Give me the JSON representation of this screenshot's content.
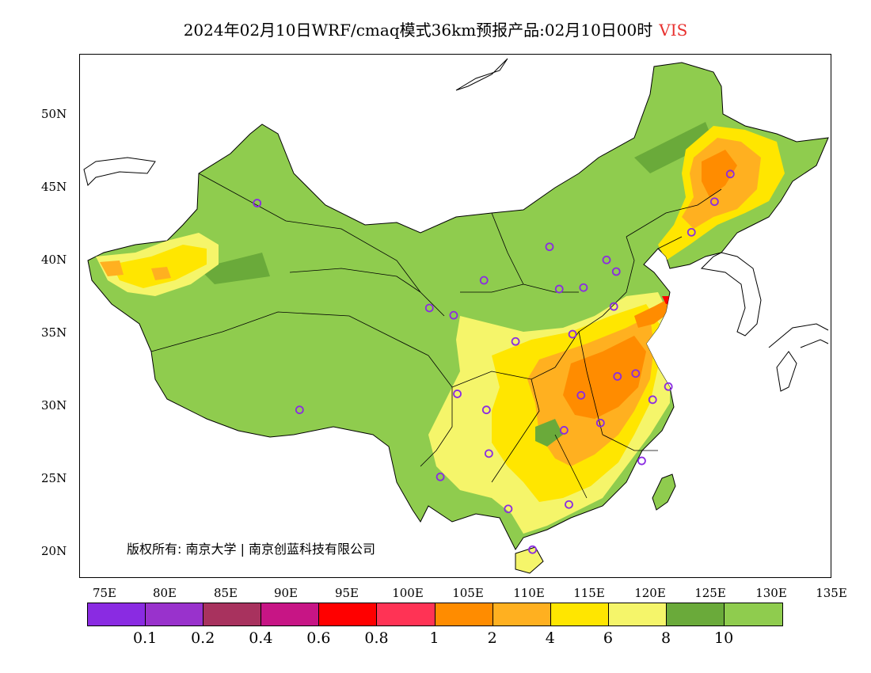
{
  "title": {
    "main": "2024年02月10日WRF/cmaq模式36km预报产品:02月10日00时",
    "variable": "VIS",
    "variable_color": "#e8312f"
  },
  "axes": {
    "lat_labels": [
      "50N",
      "45N",
      "40N",
      "35N",
      "30N",
      "25N",
      "20N"
    ],
    "lon_labels": [
      "75E",
      "80E",
      "85E",
      "90E",
      "95E",
      "100E",
      "105E",
      "110E",
      "115E",
      "120E",
      "125E",
      "130E",
      "135E"
    ]
  },
  "copyright": "版权所有: 南京大学 | 南京创蓝科技有限公司",
  "colorbar": {
    "colors": [
      "#8a2be2",
      "#9932cc",
      "#a8325e",
      "#c71585",
      "#ff0000",
      "#ff3355",
      "#ff8c00",
      "#ffb020",
      "#ffe600",
      "#f5f56a",
      "#6aaa3a",
      "#8fcc4e"
    ],
    "ticks": [
      "0.1",
      "0.2",
      "0.4",
      "0.6",
      "0.8",
      "1",
      "2",
      "4",
      "6",
      "8",
      "10"
    ]
  },
  "chart_data": {
    "type": "heatmap",
    "title": "2024年02月10日WRF/cmaq模式36km预报产品:02月10日00时 VIS",
    "lat_range": [
      18,
      54
    ],
    "lon_range": [
      73,
      135
    ],
    "levels": [
      0.1,
      0.2,
      0.4,
      0.6,
      0.8,
      1,
      2,
      4,
      6,
      8,
      10
    ],
    "stations": [
      {
        "lon": 87.6,
        "lat": 43.8
      },
      {
        "lon": 91.1,
        "lat": 29.6
      },
      {
        "lon": 101.8,
        "lat": 36.6
      },
      {
        "lon": 103.8,
        "lat": 36.1
      },
      {
        "lon": 106.3,
        "lat": 38.5
      },
      {
        "lon": 111.7,
        "lat": 40.8
      },
      {
        "lon": 116.4,
        "lat": 39.9
      },
      {
        "lon": 117.2,
        "lat": 39.1
      },
      {
        "lon": 114.5,
        "lat": 38.0
      },
      {
        "lon": 112.5,
        "lat": 37.9
      },
      {
        "lon": 108.9,
        "lat": 34.3
      },
      {
        "lon": 113.6,
        "lat": 34.8
      },
      {
        "lon": 117.0,
        "lat": 36.7
      },
      {
        "lon": 104.1,
        "lat": 30.7
      },
      {
        "lon": 106.5,
        "lat": 29.6
      },
      {
        "lon": 106.7,
        "lat": 26.6
      },
      {
        "lon": 102.7,
        "lat": 25.0
      },
      {
        "lon": 108.3,
        "lat": 22.8
      },
      {
        "lon": 113.3,
        "lat": 23.1
      },
      {
        "lon": 110.3,
        "lat": 20.0
      },
      {
        "lon": 112.9,
        "lat": 28.2
      },
      {
        "lon": 114.3,
        "lat": 30.6
      },
      {
        "lon": 115.9,
        "lat": 28.7
      },
      {
        "lon": 117.3,
        "lat": 31.9
      },
      {
        "lon": 118.8,
        "lat": 32.1
      },
      {
        "lon": 120.2,
        "lat": 30.3
      },
      {
        "lon": 121.5,
        "lat": 31.2
      },
      {
        "lon": 119.3,
        "lat": 26.1
      },
      {
        "lon": 123.4,
        "lat": 41.8
      },
      {
        "lon": 125.3,
        "lat": 43.9
      },
      {
        "lon": 126.6,
        "lat": 45.8
      }
    ]
  }
}
